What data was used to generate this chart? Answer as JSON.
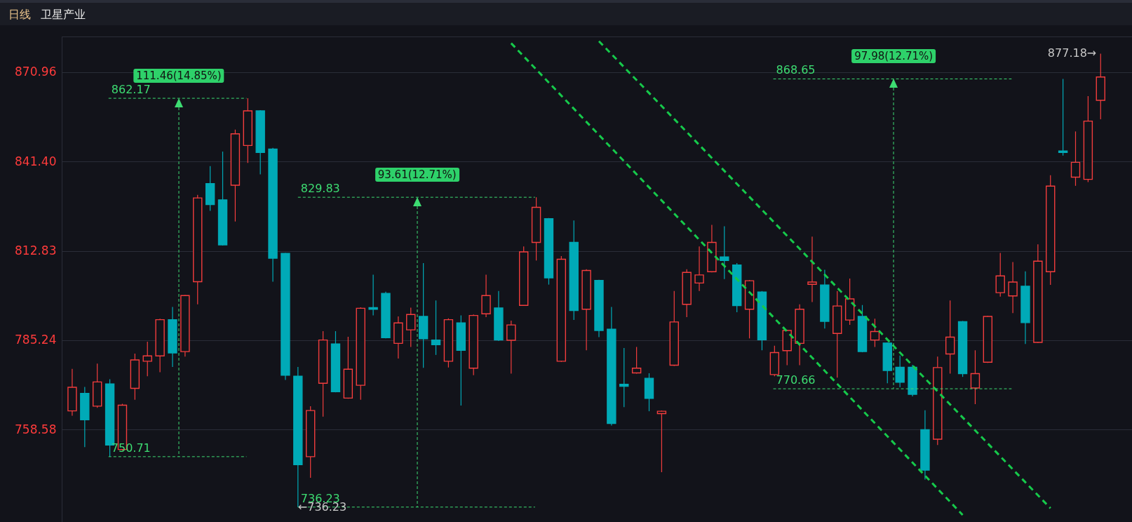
{
  "chart_data": {
    "type": "candlestick",
    "title": "卫星产业",
    "subtitle": "日线",
    "categories": [
      null,
      null,
      null,
      null,
      null,
      null,
      null,
      null,
      null,
      null,
      null,
      null,
      null,
      null,
      null,
      null,
      null,
      null,
      null,
      null,
      null,
      null,
      null,
      null,
      null,
      null,
      null,
      null,
      null,
      null,
      null,
      null,
      null,
      null,
      null,
      null,
      null,
      null,
      null,
      null,
      null,
      null,
      null,
      null,
      null,
      null,
      null,
      null,
      null,
      null,
      null,
      null,
      null,
      null,
      null,
      null,
      null,
      null,
      null,
      null,
      null,
      null,
      null,
      null,
      null,
      null,
      null,
      null,
      null,
      null,
      null,
      null,
      null,
      null,
      null,
      null,
      null,
      null,
      null,
      null,
      null,
      null,
      null
    ],
    "ohlc": [
      [
        764.1,
        776.6,
        762.7,
        771.1
      ],
      [
        769.3,
        771.2,
        753.5,
        761.5
      ],
      [
        765.5,
        778.2,
        765.0,
        772.7
      ],
      [
        772.1,
        773.5,
        750.71,
        754.1
      ],
      [
        752.8,
        766.2,
        752.5,
        765.8
      ],
      [
        770.8,
        781.2,
        767.4,
        779.3
      ],
      [
        778.9,
        784.8,
        774.4,
        780.5
      ],
      [
        780.5,
        791.8,
        775.6,
        791.5
      ],
      [
        791.5,
        795.4,
        777.2,
        781.4
      ],
      [
        781.8,
        799.1,
        780.3,
        798.9
      ],
      [
        803.2,
        830.6,
        796.2,
        829.6
      ],
      [
        834.2,
        839.9,
        825.5,
        827.5
      ],
      [
        829.0,
        844.6,
        814.5,
        814.7
      ],
      [
        833.7,
        851.8,
        822.1,
        850.4
      ],
      [
        846.6,
        862.17,
        840.9,
        858.0
      ],
      [
        858.0,
        858.2,
        837.2,
        844.3
      ],
      [
        845.4,
        845.8,
        803.2,
        810.5
      ],
      [
        812.0,
        812.2,
        773.3,
        774.7
      ],
      [
        774.4,
        777.2,
        736.23,
        748.4
      ],
      [
        750.7,
        765.5,
        744.6,
        764.2
      ],
      [
        772.3,
        788.0,
        762.4,
        785.3
      ],
      [
        784.1,
        788.0,
        769.6,
        769.8
      ],
      [
        767.9,
        786.3,
        767.7,
        776.5
      ],
      [
        771.7,
        795.3,
        767.4,
        795.0
      ],
      [
        795.2,
        805.4,
        792.8,
        794.7
      ],
      [
        799.6,
        800.1,
        785.8,
        786.0
      ],
      [
        784.3,
        792.5,
        779.7,
        790.5
      ],
      [
        788.4,
        795.2,
        783.2,
        793.1
      ],
      [
        792.5,
        809.0,
        776.9,
        785.7
      ],
      [
        785.3,
        797.4,
        780.8,
        783.9
      ],
      [
        778.9,
        791.9,
        777.0,
        791.5
      ],
      [
        790.5,
        792.8,
        765.7,
        782.2
      ],
      [
        776.8,
        793.1,
        774.7,
        792.8
      ],
      [
        793.3,
        805.4,
        792.3,
        798.9
      ],
      [
        795.1,
        800.3,
        785.0,
        785.3
      ],
      [
        785.24,
        791.2,
        775.2,
        789.9
      ],
      [
        795.9,
        814.2,
        795.7,
        812.5
      ],
      [
        815.5,
        829.83,
        809.8,
        826.6
      ],
      [
        823.0,
        823.2,
        802.3,
        804.4
      ],
      [
        778.9,
        811.2,
        778.7,
        810.2
      ],
      [
        815.5,
        822.4,
        791.4,
        794.3
      ],
      [
        794.7,
        807.1,
        782.2,
        806.7
      ],
      [
        803.6,
        803.8,
        786.2,
        788.2
      ],
      [
        788.6,
        795.4,
        759.8,
        760.4
      ],
      [
        772.0,
        782.9,
        765.2,
        771.4
      ],
      [
        775.4,
        783.2,
        775.2,
        776.8
      ],
      [
        773.8,
        775.3,
        764.0,
        767.8
      ],
      [
        763.3,
        764.2,
        746.2,
        764.0
      ],
      [
        777.7,
        800.3,
        777.5,
        790.8
      ],
      [
        796.2,
        807.1,
        792.3,
        806.1
      ],
      [
        802.8,
        814.2,
        800.3,
        805.3
      ],
      [
        806.3,
        821.0,
        806.1,
        815.5
      ],
      [
        810.9,
        820.6,
        804.0,
        809.8
      ],
      [
        808.4,
        809.0,
        793.8,
        795.8
      ],
      [
        794.7,
        803.7,
        785.8,
        803.5
      ],
      [
        800.0,
        800.3,
        782.2,
        785.4
      ],
      [
        774.9,
        783.6,
        774.4,
        781.5
      ],
      [
        782.1,
        788.4,
        777.7,
        788.2
      ],
      [
        784.3,
        796.2,
        777.7,
        794.7
      ],
      [
        802.4,
        817.3,
        796.9,
        803.1
      ],
      [
        802.2,
        806.9,
        788.8,
        791.0
      ],
      [
        787.3,
        800.3,
        774.0,
        795.7
      ],
      [
        791.4,
        804.2,
        789.9,
        797.9
      ],
      [
        792.5,
        796.0,
        781.6,
        781.8
      ],
      [
        785.3,
        791.8,
        783.2,
        787.9
      ],
      [
        784.4,
        784.6,
        772.3,
        776.1
      ],
      [
        777.1,
        780.6,
        771.1,
        772.6
      ],
      [
        777.1,
        777.8,
        768.4,
        769.0
      ],
      [
        758.58,
        764.3,
        744.1,
        746.8
      ],
      [
        755.8,
        780.3,
        754.1,
        777.0
      ],
      [
        781.1,
        797.4,
        775.2,
        786.2
      ],
      [
        790.9,
        791.1,
        774.2,
        775.2
      ],
      [
        770.9,
        782.2,
        766.1,
        775.2
      ],
      [
        778.6,
        792.7,
        778.4,
        792.5
      ],
      [
        799.8,
        812.2,
        798.6,
        805.0
      ],
      [
        798.8,
        809.3,
        793.5,
        803.1
      ],
      [
        801.8,
        806.4,
        784.1,
        790.6
      ],
      [
        784.6,
        814.9,
        784.4,
        809.6
      ],
      [
        806.3,
        836.9,
        802.2,
        833.4
      ],
      [
        844.8,
        868.65,
        843.3,
        844.3
      ],
      [
        836.3,
        851.2,
        833.5,
        841.1
      ],
      [
        835.6,
        862.9,
        834.7,
        854.6
      ],
      [
        861.5,
        877.18,
        855.2,
        869.3
      ]
    ],
    "colors": [
      "#f23d3d",
      "#00aab7",
      "#f23d3d",
      "#00aab7",
      "#f23d3d",
      "#f23d3d",
      "#f23d3d",
      "#f23d3d",
      "#00aab7",
      "#f23d3d",
      "#f23d3d",
      "#00aab7",
      "#00aab7",
      "#f23d3d",
      "#f23d3d",
      "#00aab7",
      "#00aab7",
      "#00aab7",
      "#00aab7",
      "#f23d3d",
      "#f23d3d",
      "#00aab7",
      "#f23d3d",
      "#f23d3d",
      "#00aab7",
      "#00aab7",
      "#f23d3d",
      "#f23d3d",
      "#00aab7",
      "#00aab7",
      "#f23d3d",
      "#00aab7",
      "#f23d3d",
      "#f23d3d",
      "#00aab7",
      "#f23d3d",
      "#f23d3d",
      "#f23d3d",
      "#00aab7",
      "#f23d3d",
      "#00aab7",
      "#f23d3d",
      "#00aab7",
      "#00aab7",
      "#00aab7",
      "#f23d3d",
      "#00aab7",
      "#f23d3d",
      "#f23d3d",
      "#f23d3d",
      "#f23d3d",
      "#f23d3d",
      "#00aab7",
      "#00aab7",
      "#f23d3d",
      "#00aab7",
      "#f23d3d",
      "#f23d3d",
      "#f23d3d",
      "#f23d3d",
      "#00aab7",
      "#f23d3d",
      "#f23d3d",
      "#00aab7",
      "#f23d3d",
      "#00aab7",
      "#00aab7",
      "#00aab7",
      "#00aab7",
      "#f23d3d",
      "#f23d3d",
      "#00aab7",
      "#f23d3d",
      "#f23d3d",
      "#f23d3d",
      "#f23d3d",
      "#00aab7",
      "#f23d3d",
      "#f23d3d",
      "#00aab7",
      "#f23d3d",
      "#f23d3d",
      "#f23d3d"
    ],
    "series": [
      {
        "type": "line",
        "color": "#16c94b",
        "line_style": "dashed",
        "values": [
          null,
          null,
          null,
          null,
          null,
          null,
          null,
          null,
          null,
          null,
          null,
          null,
          null,
          null,
          null,
          null,
          null,
          null,
          null,
          null,
          null,
          null,
          null,
          null,
          null,
          null,
          null,
          null,
          null,
          null,
          null,
          null,
          null,
          null,
          null,
          880.7,
          null,
          null,
          null,
          null,
          null,
          null,
          null,
          null,
          null,
          null,
          null,
          null,
          null,
          null,
          null,
          null,
          null,
          null,
          null,
          null,
          null,
          null,
          null,
          null,
          null,
          null,
          null,
          null,
          null,
          null,
          null,
          null,
          null,
          null,
          null,
          734.0,
          null,
          null,
          null,
          null,
          null,
          null,
          null,
          null,
          null,
          null,
          null
        ]
      },
      {
        "type": "line",
        "color": "#16c94b",
        "line_style": "dashed",
        "values": [
          null,
          null,
          null,
          null,
          null,
          null,
          null,
          null,
          null,
          null,
          null,
          null,
          null,
          null,
          null,
          null,
          null,
          null,
          null,
          null,
          null,
          null,
          null,
          null,
          null,
          null,
          null,
          null,
          null,
          null,
          null,
          null,
          null,
          null,
          null,
          null,
          null,
          null,
          null,
          null,
          null,
          null,
          881.4,
          null,
          null,
          null,
          null,
          null,
          null,
          null,
          null,
          null,
          null,
          null,
          null,
          null,
          null,
          null,
          null,
          null,
          null,
          null,
          null,
          null,
          null,
          null,
          null,
          null,
          null,
          null,
          null,
          null,
          null,
          null,
          null,
          null,
          null,
          null,
          735.9,
          null,
          null,
          null,
          null
        ]
      }
    ],
    "ylim": [
      732,
      883
    ],
    "yticks": [
      758.58,
      785.24,
      812.83,
      {
        "value": 841.4,
        "label": "841.40"
      },
      870.96
    ],
    "log": true,
    "grid": "y",
    "tick_labels": "y",
    "ref_lines": [
      {
        "axis": "y",
        "value": 862.17,
        "label": "862.17",
        "color": "#3ddc72",
        "line_style": "dashed"
      },
      {
        "axis": "y",
        "value": 750.71,
        "label": "750.71",
        "color": "#3ddc72",
        "line_style": "dashed"
      },
      {
        "axis": "y",
        "value": 829.83,
        "label": "829.83",
        "color": "#3ddc72",
        "line_style": "dashed"
      },
      {
        "axis": "y",
        "value": 736.23,
        "label": "736.23",
        "color": "#3ddc72",
        "line_style": "dashed"
      },
      {
        "axis": "y",
        "value": 868.65,
        "label": "868.65",
        "color": "#3ddc72",
        "line_style": "dashed"
      },
      {
        "axis": "y",
        "value": 770.66,
        "label": "770.66",
        "color": "#3ddc72",
        "line_style": "dashed"
      }
    ],
    "annotations": [
      "111.46(14.85%)",
      "93.61(12.71%)",
      "97.98(12.71%)",
      "877.18→",
      "←736.23"
    ]
  }
}
